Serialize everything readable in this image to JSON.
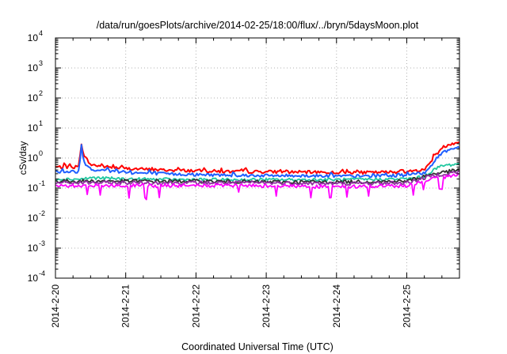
{
  "chart_data": {
    "type": "line",
    "title": "/data/run/goesPlots/archive/2014-02-25/18:00/flux/../bryn/5daysMoon.plot",
    "xlabel": "Coordinated Universal Time (UTC)",
    "ylabel": "cSv/day",
    "xlim": [
      "2014-02-20 00:00",
      "2014-02-25 18:00"
    ],
    "ylim": [
      0.0001,
      10000
    ],
    "yscale": "log",
    "grid": true,
    "xticks": [
      "2014-2-20",
      "2014-2-21",
      "2014-2-22",
      "2014-2-23",
      "2014-2-24",
      "2014-2-25"
    ],
    "yticks": [
      {
        "base": "10",
        "exp": "-4",
        "value": 0.0001
      },
      {
        "base": "10",
        "exp": "-3",
        "value": 0.001
      },
      {
        "base": "10",
        "exp": "-2",
        "value": 0.01
      },
      {
        "base": "10",
        "exp": "-1",
        "value": 0.1
      },
      {
        "base": "10",
        "exp": "0",
        "value": 1
      },
      {
        "base": "10",
        "exp": "1",
        "value": 10
      },
      {
        "base": "10",
        "exp": "2",
        "value": 100
      },
      {
        "base": "10",
        "exp": "3",
        "value": 1000
      },
      {
        "base": "10",
        "exp": "4",
        "value": 10000
      }
    ],
    "series": [
      {
        "color": "#ff0000",
        "x": [
          "2014-02-20 00:00",
          "2014-02-20 06:00",
          "2014-02-20 08:00",
          "2014-02-20 09:00",
          "2014-02-20 09:30",
          "2014-02-20 12:00",
          "2014-02-20 18:00",
          "2014-02-21 00:00",
          "2014-02-21 12:00",
          "2014-02-22 00:00",
          "2014-02-22 12:00",
          "2014-02-23 00:00",
          "2014-02-23 12:00",
          "2014-02-24 00:00",
          "2014-02-24 12:00",
          "2014-02-25 00:00",
          "2014-02-25 06:00",
          "2014-02-25 09:00",
          "2014-02-25 12:00",
          "2014-02-25 15:00",
          "2014-02-25 18:00"
        ],
        "y": [
          0.5,
          0.5,
          0.5,
          4.2,
          1.3,
          0.6,
          0.5,
          0.45,
          0.4,
          0.38,
          0.35,
          0.35,
          0.34,
          0.33,
          0.33,
          0.35,
          0.4,
          1.0,
          2.2,
          3.0,
          3.5
        ]
      },
      {
        "color": "#1f5fff",
        "x": [
          "2014-02-20 00:00",
          "2014-02-20 06:00",
          "2014-02-20 08:00",
          "2014-02-20 09:00",
          "2014-02-20 09:30",
          "2014-02-20 12:00",
          "2014-02-20 18:00",
          "2014-02-21 00:00",
          "2014-02-21 12:00",
          "2014-02-22 00:00",
          "2014-02-22 12:00",
          "2014-02-23 00:00",
          "2014-02-23 12:00",
          "2014-02-24 00:00",
          "2014-02-24 12:00",
          "2014-02-25 00:00",
          "2014-02-25 06:00",
          "2014-02-25 09:00",
          "2014-02-25 12:00",
          "2014-02-25 15:00",
          "2014-02-25 18:00"
        ],
        "y": [
          0.35,
          0.35,
          0.36,
          3.5,
          0.8,
          0.42,
          0.37,
          0.33,
          0.3,
          0.28,
          0.27,
          0.26,
          0.26,
          0.25,
          0.25,
          0.27,
          0.32,
          0.7,
          1.5,
          2.0,
          2.3
        ]
      },
      {
        "color": "#20c8a0",
        "x": [
          "2014-02-20 00:00",
          "2014-02-20 09:00",
          "2014-02-20 12:00",
          "2014-02-21 00:00",
          "2014-02-22 00:00",
          "2014-02-23 00:00",
          "2014-02-24 00:00",
          "2014-02-25 00:00",
          "2014-02-25 06:00",
          "2014-02-25 09:00",
          "2014-02-25 12:00",
          "2014-02-25 18:00"
        ],
        "y": [
          0.2,
          0.2,
          0.22,
          0.2,
          0.19,
          0.19,
          0.19,
          0.2,
          0.24,
          0.4,
          0.55,
          0.65
        ]
      },
      {
        "color": "#303030",
        "x": [
          "2014-02-20 00:00",
          "2014-02-21 00:00",
          "2014-02-22 00:00",
          "2014-02-23 00:00",
          "2014-02-24 00:00",
          "2014-02-25 00:00",
          "2014-02-25 09:00",
          "2014-02-25 18:00"
        ],
        "y": [
          0.17,
          0.17,
          0.17,
          0.16,
          0.16,
          0.17,
          0.3,
          0.4
        ]
      },
      {
        "color": "#9030a0",
        "x": [
          "2014-02-20 00:00",
          "2014-02-21 00:00",
          "2014-02-22 00:00",
          "2014-02-23 00:00",
          "2014-02-24 00:00",
          "2014-02-25 00:00",
          "2014-02-25 09:00",
          "2014-02-25 18:00"
        ],
        "y": [
          0.15,
          0.15,
          0.15,
          0.15,
          0.14,
          0.15,
          0.26,
          0.35
        ]
      },
      {
        "color": "#ff00ff",
        "x": [
          "2014-02-20 00:00",
          "2014-02-21 00:00",
          "2014-02-22 00:00",
          "2014-02-23 00:00",
          "2014-02-24 00:00",
          "2014-02-25 00:00",
          "2014-02-25 09:00",
          "2014-02-25 18:00"
        ],
        "y": [
          0.12,
          0.12,
          0.12,
          0.12,
          0.11,
          0.12,
          0.2,
          0.28
        ]
      }
    ]
  }
}
